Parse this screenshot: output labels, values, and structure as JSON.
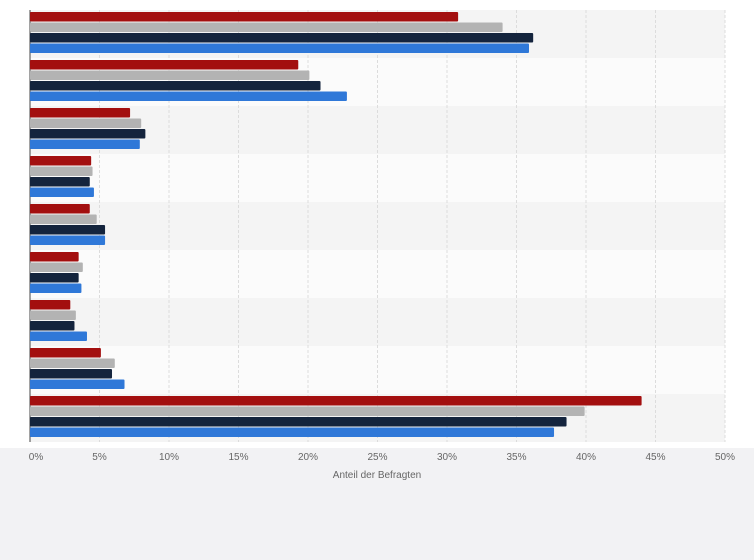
{
  "chart_data": {
    "type": "bar",
    "orientation": "horizontal",
    "categories": [
      "",
      "",
      "",
      "",
      "",
      "",
      "",
      "",
      ""
    ],
    "series": [
      {
        "color": "#a30f0f",
        "values": [
          30.8,
          19.3,
          7.2,
          4.4,
          4.3,
          3.5,
          2.9,
          5.1,
          44.0
        ]
      },
      {
        "color": "#b3b3b3",
        "values": [
          34.0,
          20.1,
          8.0,
          4.5,
          4.8,
          3.8,
          3.3,
          6.1,
          39.9
        ]
      },
      {
        "color": "#14243d",
        "values": [
          36.2,
          20.9,
          8.3,
          4.3,
          5.4,
          3.5,
          3.2,
          5.9,
          38.6
        ]
      },
      {
        "color": "#2f78d8",
        "values": [
          35.9,
          22.8,
          7.9,
          4.6,
          5.4,
          3.7,
          4.1,
          6.8,
          37.7
        ]
      }
    ],
    "xlabel": "Anteil der Befragten",
    "ylabel": "",
    "xlim": [
      0,
      50
    ],
    "x_ticks": [
      "0%",
      "5%",
      "10%",
      "15%",
      "20%",
      "25%",
      "30%",
      "35%",
      "40%",
      "45%",
      "50%"
    ],
    "grid": true,
    "legend": "none"
  }
}
